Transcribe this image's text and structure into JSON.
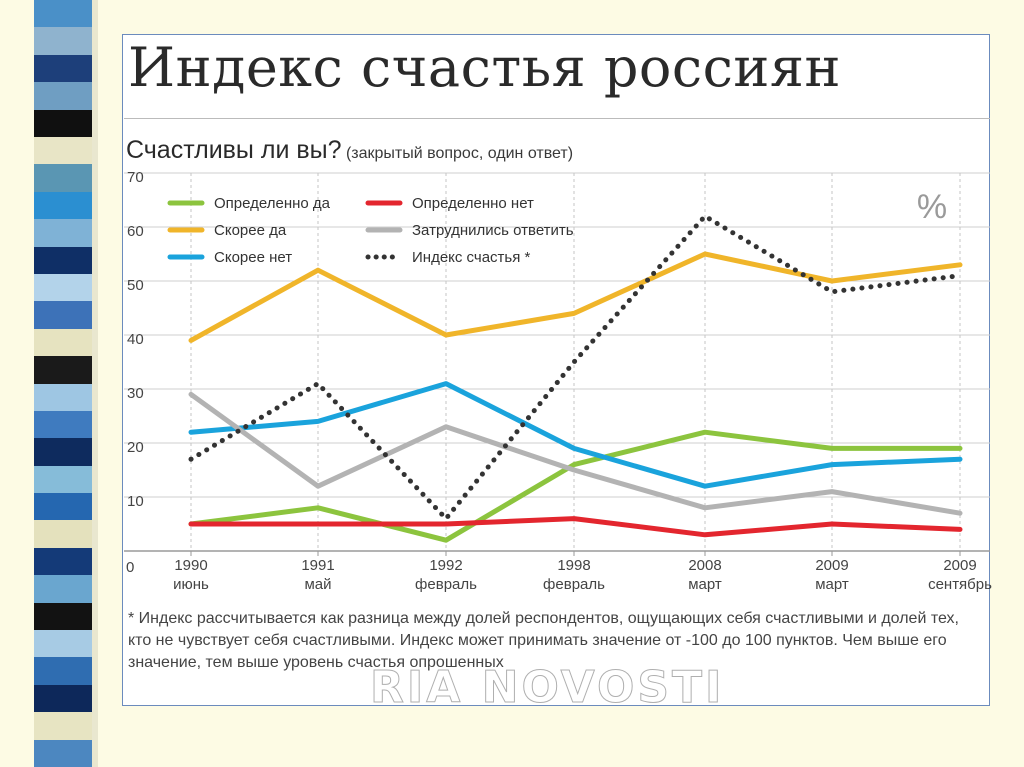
{
  "slide": {
    "stripe_colors": [
      "#4a90c8",
      "#8fb3ce",
      "#1d3f7a",
      "#6f9ec2",
      "#101010",
      "#e8e5c6",
      "#5a96b3",
      "#2b8fd1",
      "#7fb2d6",
      "#0f2f66",
      "#b3d3ea",
      "#3d72b8",
      "#e6e3c0",
      "#1a1a1a",
      "#9ec6e3",
      "#3f7bbf",
      "#0e2b5e",
      "#86bcd9",
      "#2567b0",
      "#e4e1bd",
      "#143a78",
      "#6aa6cf",
      "#121212",
      "#a7cbe4",
      "#2f6db1",
      "#0d285a",
      "#e7e4c2",
      "#4c87c0"
    ]
  },
  "title": "Индекс счастья россиян",
  "question": {
    "main": "Счастливы ли вы?",
    "note": "(закрытый вопрос, один ответ)"
  },
  "percent_sign": "%",
  "footnote": "* Индекс рассчитывается как разница между долей респондентов, ощущающих себя счастливыми и долей тех, кто не чувствует себя счастливыми. Индекс может принимать значение от -100 до 100 пунктов. Чем выше его значение, тем выше уровень счастья опрошенных",
  "watermark": "RIA NOVOSTI",
  "chart_data": {
    "type": "line",
    "title": "Индекс счастья россиян",
    "subtitle": "Счастливы ли вы? (закрытый вопрос, один ответ)",
    "ylabel": "%",
    "ylim": [
      0,
      70
    ],
    "yticks": [
      10,
      20,
      30,
      40,
      50,
      60,
      70
    ],
    "zero_label": "0",
    "grid": true,
    "legend_position": "top-left",
    "x_years": [
      "1990",
      "1991",
      "1992",
      "1998",
      "2008",
      "2009",
      "2009"
    ],
    "x_months": [
      "июнь",
      "май",
      "февраль",
      "февраль",
      "март",
      "март",
      "сентябрь"
    ],
    "series": [
      {
        "name": "Определенно да",
        "color": "#8cc43e",
        "style": "solid",
        "values": [
          5,
          8,
          2,
          16,
          22,
          19,
          19
        ]
      },
      {
        "name": "Скорее да",
        "color": "#f0b52a",
        "style": "solid",
        "values": [
          39,
          52,
          40,
          44,
          55,
          50,
          53
        ]
      },
      {
        "name": "Скорее нет",
        "color": "#1aa3dc",
        "style": "solid",
        "values": [
          22,
          24,
          31,
          19,
          12,
          16,
          17
        ]
      },
      {
        "name": "Определенно нет",
        "color": "#e3262e",
        "style": "solid",
        "values": [
          5,
          5,
          5,
          6,
          3,
          5,
          4
        ]
      },
      {
        "name": "Затруднились ответить",
        "color": "#b3b3b3",
        "style": "solid",
        "values": [
          29,
          12,
          23,
          15,
          8,
          11,
          7
        ]
      },
      {
        "name": "Индекс счастья *",
        "color": "#333333",
        "style": "dotted",
        "values": [
          17,
          31,
          6,
          35,
          62,
          48,
          51
        ]
      }
    ],
    "legend_order": [
      0,
      3,
      1,
      4,
      2,
      5
    ]
  }
}
